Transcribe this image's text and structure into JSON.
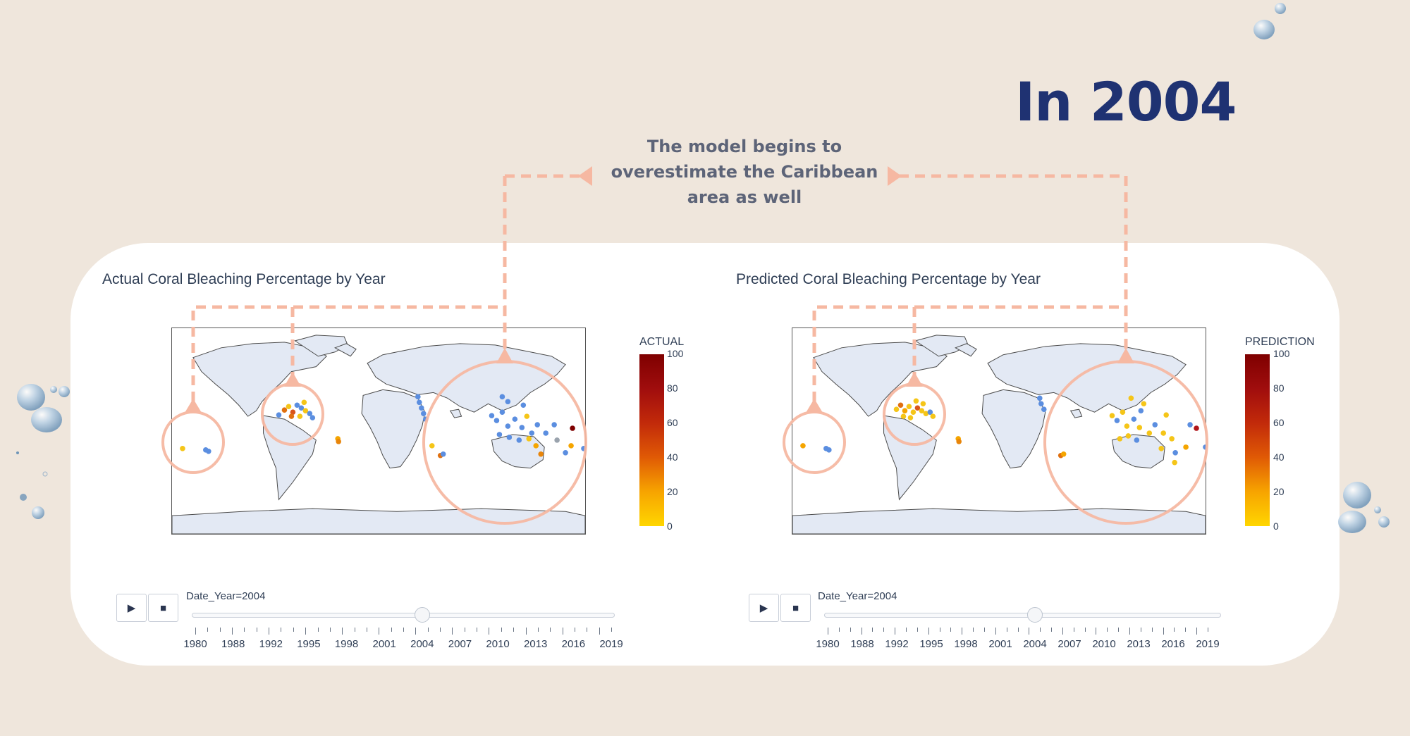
{
  "headline": "In 2004",
  "callout": {
    "text_lines": [
      "The model begins to",
      "overestimate the Caribbean",
      "area as well"
    ]
  },
  "colors": {
    "background": "#efe6dc",
    "headline": "#1f3272",
    "annotation": "#f6b8a2",
    "land": "#e3e9f4",
    "unbleached_marker": "#5b8ee0"
  },
  "charts": [
    {
      "title": "Actual Coral Bleaching Percentage by Year",
      "colorbar_title": "ACTUAL",
      "colorbar_ticks": [
        "100",
        "80",
        "60",
        "40",
        "20",
        "0"
      ],
      "slider_label": "Date_Year=2004",
      "play_icon": "play-icon",
      "stop_icon": "stop-icon",
      "slider_value": 2004
    },
    {
      "title": "Predicted Coral Bleaching Percentage by Year",
      "colorbar_title": "PREDICTION",
      "colorbar_ticks": [
        "100",
        "80",
        "60",
        "40",
        "20",
        "0"
      ],
      "slider_label": "Date_Year=2004",
      "play_icon": "play-icon",
      "stop_icon": "stop-icon",
      "slider_value": 2004
    }
  ],
  "slider_tick_labels": [
    "1980",
    "1988",
    "1992",
    "1995",
    "1998",
    "2001",
    "2004",
    "2007",
    "2010",
    "2013",
    "2016",
    "2019"
  ]
}
